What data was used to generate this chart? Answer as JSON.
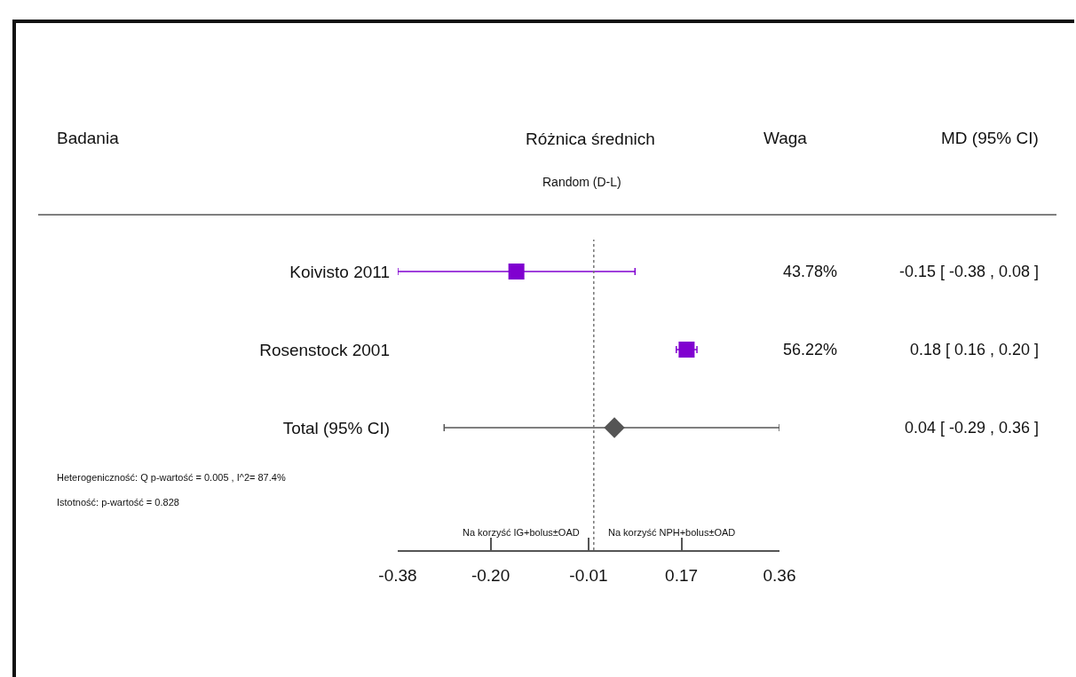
{
  "chart_data": {
    "type": "scatter",
    "orientation": "horizontal",
    "subtitle": "Random (D-L)",
    "categories": [
      "Koivisto 2011",
      "Rosenstock 2001",
      "Total (95% CI)"
    ],
    "series": [
      {
        "color": "#8000d0",
        "marker": "square",
        "values": [
          -0.15,
          0.18,
          null
        ],
        "errors": [
          [
            -0.38,
            0.08
          ],
          [
            0.16,
            0.2
          ],
          null
        ],
        "value_labels": [
          "-0.15 [ -0.38 , 0.08 ]",
          "0.18 [ 0.16 , 0.20 ]",
          null
        ]
      },
      {
        "color": "#555555",
        "marker": "diamond",
        "values": [
          null,
          null,
          0.04
        ],
        "errors": [
          null,
          null,
          [
            -0.29,
            0.36
          ]
        ]
      }
    ],
    "xlim": [
      -0.38,
      0.36
    ],
    "xticks": [
      -0.38,
      {
        "value": -0.2,
        "label": "-0.20"
      },
      -0.01,
      0.17,
      0.36
    ],
    "ref_lines": [
      {
        "axis": "x",
        "value": 0,
        "line_style": "dotted",
        "color": "#777777"
      }
    ],
    "grid": false,
    "annotations": [
      "Badania",
      "Różnica średnich",
      "Waga",
      "MD (95% CI)",
      "43.78%",
      "56.22%",
      "Heterogeniczność: Q p-wartość = 0.005 , I^2= 87.4%",
      "Istotność: p-wartość = 0.828",
      "Na korzyść IG+bolus±OAD",
      "Na korzyść NPH+bolus±OAD",
      "0.04 [ -0.29 , 0.36 ]"
    ]
  }
}
